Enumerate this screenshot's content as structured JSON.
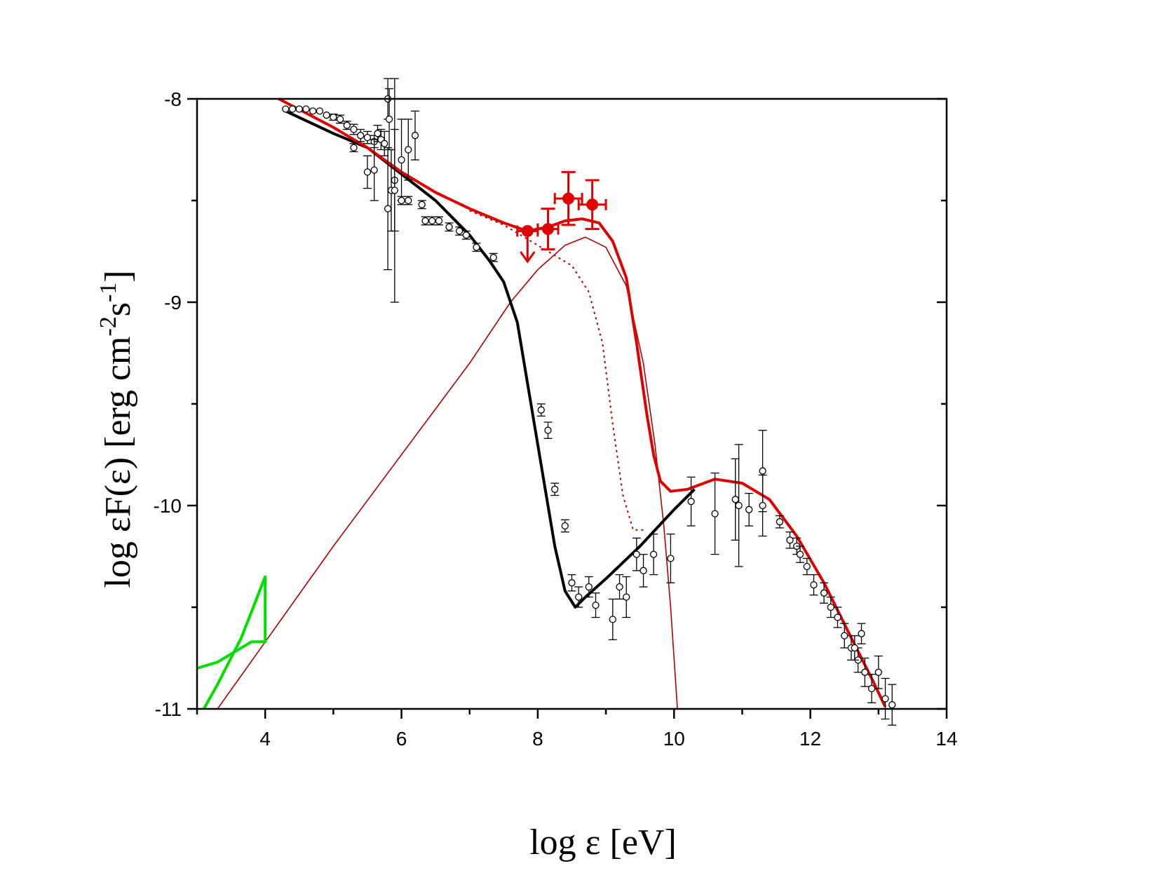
{
  "chart_data": {
    "type": "scatter",
    "xlabel": "log ε [eV]",
    "ylabel_main": "log εF(ε) [erg cm",
    "ylabel_sup1": "-2",
    "ylabel_mid": "s",
    "ylabel_sup2": "-1",
    "ylabel_end": "]",
    "xlim": [
      3,
      14
    ],
    "ylim": [
      -11,
      -8
    ],
    "xticks": [
      4,
      6,
      8,
      10,
      12,
      14
    ],
    "yticks": [
      -11,
      -10,
      -9,
      -8
    ],
    "xtick_labels": [
      "4",
      "6",
      "8",
      "10",
      "12",
      "14"
    ],
    "ytick_labels": [
      "-11",
      "-10",
      "-9",
      "-8"
    ],
    "colors": {
      "model_black": "#000000",
      "model_red": "#e00000",
      "dark_red": "#b00000",
      "green": "#00e000",
      "red_points": "#e00000"
    },
    "series": [
      {
        "name": "black-model",
        "style": "thick-black",
        "points": [
          [
            4.3,
            -8.06
          ],
          [
            5.0,
            -8.17
          ],
          [
            5.5,
            -8.24
          ],
          [
            6.0,
            -8.37
          ],
          [
            6.5,
            -8.5
          ],
          [
            7.0,
            -8.67
          ],
          [
            7.3,
            -8.8
          ],
          [
            7.5,
            -8.9
          ],
          [
            7.7,
            -9.1
          ],
          [
            7.9,
            -9.5
          ],
          [
            8.1,
            -9.9
          ],
          [
            8.25,
            -10.2
          ],
          [
            8.4,
            -10.42
          ],
          [
            8.55,
            -10.5
          ],
          [
            8.7,
            -10.45
          ],
          [
            9.0,
            -10.36
          ],
          [
            9.5,
            -10.2
          ],
          [
            10.0,
            -10.02
          ],
          [
            10.3,
            -9.92
          ]
        ]
      },
      {
        "name": "red-total-model",
        "style": "thick-red",
        "points": [
          [
            4.2,
            -8.0
          ],
          [
            5.0,
            -8.14
          ],
          [
            5.5,
            -8.24
          ],
          [
            6.0,
            -8.36
          ],
          [
            6.5,
            -8.46
          ],
          [
            7.0,
            -8.54
          ],
          [
            7.5,
            -8.61
          ],
          [
            7.85,
            -8.65
          ],
          [
            8.15,
            -8.63
          ],
          [
            8.4,
            -8.6
          ],
          [
            8.65,
            -8.59
          ],
          [
            8.9,
            -8.61
          ],
          [
            9.1,
            -8.7
          ],
          [
            9.3,
            -8.88
          ],
          [
            9.45,
            -9.2
          ],
          [
            9.6,
            -9.55
          ],
          [
            9.7,
            -9.75
          ],
          [
            9.8,
            -9.88
          ],
          [
            9.95,
            -9.93
          ],
          [
            10.2,
            -9.92
          ],
          [
            10.6,
            -9.87
          ],
          [
            11.0,
            -9.89
          ],
          [
            11.4,
            -9.97
          ],
          [
            11.8,
            -10.15
          ],
          [
            12.2,
            -10.38
          ],
          [
            12.6,
            -10.65
          ],
          [
            12.9,
            -10.85
          ],
          [
            13.1,
            -10.99
          ]
        ]
      },
      {
        "name": "red-thin-component",
        "style": "thin-red",
        "points": [
          [
            3.3,
            -11.0
          ],
          [
            5.0,
            -10.2
          ],
          [
            6.0,
            -9.75
          ],
          [
            7.0,
            -9.3
          ],
          [
            7.6,
            -9.0
          ],
          [
            8.0,
            -8.84
          ],
          [
            8.4,
            -8.72
          ],
          [
            8.7,
            -8.68
          ],
          [
            9.0,
            -8.73
          ],
          [
            9.3,
            -8.92
          ],
          [
            9.55,
            -9.3
          ],
          [
            9.72,
            -9.7
          ],
          [
            9.85,
            -10.1
          ],
          [
            9.95,
            -10.5
          ],
          [
            10.05,
            -11.0
          ]
        ]
      },
      {
        "name": "red-dotted-component",
        "style": "dotted-red",
        "points": [
          [
            7.0,
            -8.55
          ],
          [
            7.5,
            -8.62
          ],
          [
            7.9,
            -8.7
          ],
          [
            8.2,
            -8.76
          ],
          [
            8.5,
            -8.82
          ],
          [
            8.75,
            -8.95
          ],
          [
            8.95,
            -9.2
          ],
          [
            9.1,
            -9.6
          ],
          [
            9.25,
            -9.95
          ],
          [
            9.4,
            -10.12
          ],
          [
            9.55,
            -10.12
          ]
        ]
      },
      {
        "name": "green-bowtie",
        "style": "green",
        "points": [
          [
            3.0,
            -10.8
          ],
          [
            3.3,
            -10.77
          ],
          [
            3.5,
            -10.73
          ],
          [
            3.8,
            -10.67
          ],
          [
            4.0,
            -10.67
          ],
          [
            4.0,
            -10.35
          ],
          [
            3.65,
            -10.65
          ],
          [
            3.3,
            -10.88
          ],
          [
            3.1,
            -11.0
          ]
        ]
      }
    ],
    "open_points": [
      [
        4.3,
        -8.05,
        0.01
      ],
      [
        4.4,
        -8.05,
        0.01
      ],
      [
        4.5,
        -8.05,
        0.01
      ],
      [
        4.6,
        -8.05,
        0.01
      ],
      [
        4.7,
        -8.06,
        0.01
      ],
      [
        4.8,
        -8.06,
        0.01
      ],
      [
        4.9,
        -8.08,
        0.01
      ],
      [
        5.0,
        -8.09,
        0.015
      ],
      [
        5.1,
        -8.1,
        0.02
      ],
      [
        5.2,
        -8.13,
        0.02
      ],
      [
        5.3,
        -8.15,
        0.025
      ],
      [
        5.4,
        -8.18,
        0.03
      ],
      [
        5.5,
        -8.19,
        0.03
      ],
      [
        5.6,
        -8.21,
        0.03
      ],
      [
        5.65,
        -8.17,
        0.04
      ],
      [
        5.7,
        -8.2,
        0.05
      ],
      [
        5.75,
        -8.22,
        0.06
      ],
      [
        5.8,
        -8.0,
        0.1
      ],
      [
        5.82,
        -8.1,
        0.15
      ],
      [
        5.85,
        -8.45,
        0.2
      ],
      [
        5.9,
        -8.4,
        0.25
      ],
      [
        6.0,
        -8.3,
        0.2
      ],
      [
        6.1,
        -8.25,
        0.15
      ],
      [
        6.2,
        -8.18,
        0.12
      ],
      [
        5.3,
        -8.24,
        0.02
      ],
      [
        5.5,
        -8.36,
        0.08
      ],
      [
        5.6,
        -8.35,
        0.15
      ],
      [
        5.8,
        -8.54,
        0.3
      ],
      [
        5.9,
        -8.45,
        0.55
      ],
      [
        6.0,
        -8.5,
        0.02
      ],
      [
        6.1,
        -8.5,
        0.02
      ],
      [
        6.3,
        -8.52,
        0.02
      ],
      [
        6.35,
        -8.6,
        0.02
      ],
      [
        6.45,
        -8.6,
        0.02
      ],
      [
        6.55,
        -8.6,
        0.02
      ],
      [
        6.7,
        -8.63,
        0.02
      ],
      [
        6.85,
        -8.65,
        0.02
      ],
      [
        6.95,
        -8.67,
        0.02
      ],
      [
        7.1,
        -8.73,
        0.02
      ],
      [
        7.35,
        -8.78,
        0.02
      ],
      [
        8.05,
        -9.53,
        0.03
      ],
      [
        8.15,
        -9.63,
        0.04
      ],
      [
        8.25,
        -9.92,
        0.03
      ],
      [
        8.4,
        -10.1,
        0.03
      ],
      [
        8.5,
        -10.38,
        0.04
      ],
      [
        8.6,
        -10.45,
        0.05
      ],
      [
        8.75,
        -10.4,
        0.05
      ],
      [
        8.85,
        -10.49,
        0.06
      ],
      [
        9.1,
        -10.56,
        0.1
      ],
      [
        9.2,
        -10.4,
        0.06
      ],
      [
        9.3,
        -10.45,
        0.1
      ],
      [
        9.45,
        -10.24,
        0.08
      ],
      [
        9.55,
        -10.32,
        0.08
      ],
      [
        9.7,
        -10.24,
        0.1
      ],
      [
        9.95,
        -10.26,
        0.12
      ],
      [
        10.25,
        -9.98,
        0.12
      ],
      [
        10.6,
        -10.04,
        0.2
      ],
      [
        10.9,
        -9.97,
        0.2
      ],
      [
        10.95,
        -10.0,
        0.3
      ],
      [
        11.1,
        -10.02,
        0.08
      ],
      [
        11.3,
        -9.83,
        0.2
      ],
      [
        11.3,
        -10.0,
        0.15
      ],
      [
        11.55,
        -10.08,
        0.03
      ],
      [
        11.7,
        -10.17,
        0.04
      ],
      [
        11.8,
        -10.2,
        0.04
      ],
      [
        11.85,
        -10.24,
        0.04
      ],
      [
        11.95,
        -10.3,
        0.04
      ],
      [
        12.05,
        -10.39,
        0.05
      ],
      [
        12.2,
        -10.43,
        0.05
      ],
      [
        12.3,
        -10.5,
        0.05
      ],
      [
        12.4,
        -10.55,
        0.05
      ],
      [
        12.5,
        -10.64,
        0.06
      ],
      [
        12.6,
        -10.7,
        0.06
      ],
      [
        12.7,
        -10.76,
        0.06
      ],
      [
        12.8,
        -10.82,
        0.07
      ],
      [
        12.9,
        -10.9,
        0.07
      ],
      [
        13.0,
        -10.82,
        0.08
      ],
      [
        13.1,
        -10.95,
        0.1
      ],
      [
        13.2,
        -10.98,
        0.1
      ],
      [
        12.65,
        -10.7,
        0.06
      ],
      [
        12.75,
        -10.63,
        0.05
      ]
    ],
    "red_points": [
      {
        "x": 7.85,
        "y": -8.65,
        "xerr": 0.15,
        "yerr": 0.0,
        "upper_limit": true
      },
      {
        "x": 8.15,
        "y": -8.64,
        "xerr": 0.15,
        "yerr": 0.1
      },
      {
        "x": 8.45,
        "y": -8.49,
        "xerr": 0.2,
        "yerr": 0.13
      },
      {
        "x": 8.8,
        "y": -8.52,
        "xerr": 0.2,
        "yerr": 0.12
      }
    ]
  }
}
